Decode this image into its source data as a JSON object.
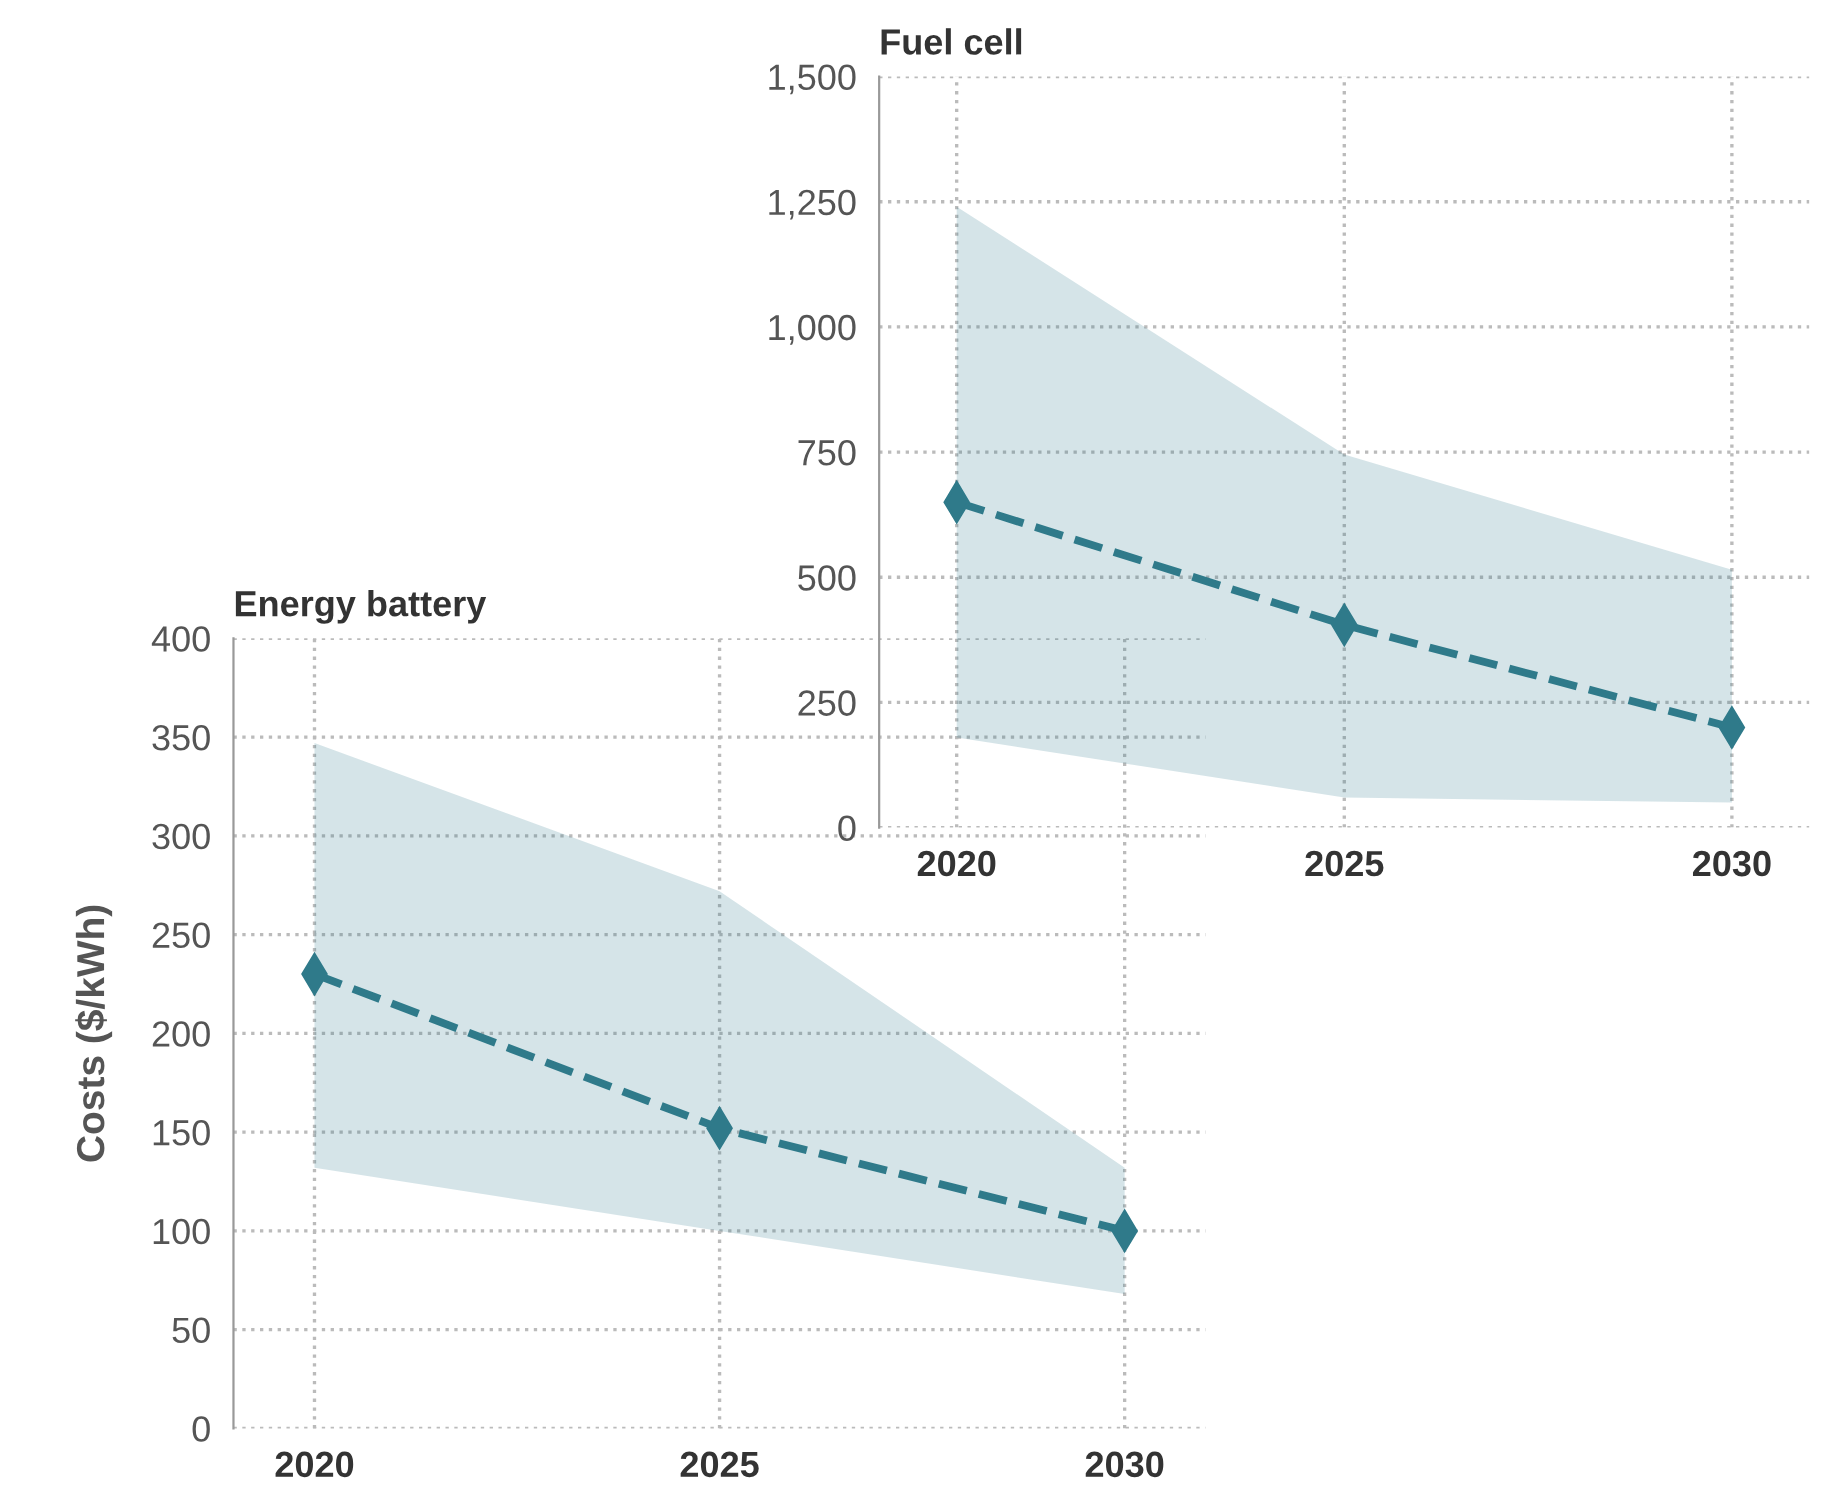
{
  "chart_data": [
    {
      "type": "line",
      "title": "Fuel cell",
      "x": [
        2020,
        2025,
        2030
      ],
      "xlim": [
        2019,
        2031
      ],
      "xticks": [
        2020,
        2025,
        2030
      ],
      "ylim": [
        0,
        1500
      ],
      "yticks": [
        0,
        250,
        500,
        750,
        {
          "value": 1000,
          "label": "1,000"
        },
        {
          "value": 1250,
          "label": "1,250"
        },
        {
          "value": 1500,
          "label": "1,500"
        }
      ],
      "grid": true,
      "marker": "diamond",
      "line_style": "dashed",
      "series": [
        {
          "color": "#2f7a8a",
          "values": [
            650,
            405,
            200
          ],
          "lower": [
            180,
            60,
            50
          ],
          "upper": [
            1240,
            745,
            515
          ]
        }
      ]
    },
    {
      "type": "line",
      "title": "Energy battery",
      "ylabel": "Costs ($/kWh)",
      "x": [
        2020,
        2025,
        2030
      ],
      "xlim": [
        2019,
        2031
      ],
      "xticks": [
        2020,
        2025,
        2030
      ],
      "ylim": [
        0,
        400
      ],
      "yticks": [
        0,
        50,
        100,
        150,
        200,
        250,
        300,
        350,
        400
      ],
      "grid": true,
      "marker": "diamond",
      "line_style": "dashed",
      "series": [
        {
          "color": "#2f7a8a",
          "values": [
            230,
            152,
            100
          ],
          "lower": [
            132,
            100,
            68
          ],
          "upper": [
            347,
            272,
            132
          ]
        }
      ]
    }
  ]
}
